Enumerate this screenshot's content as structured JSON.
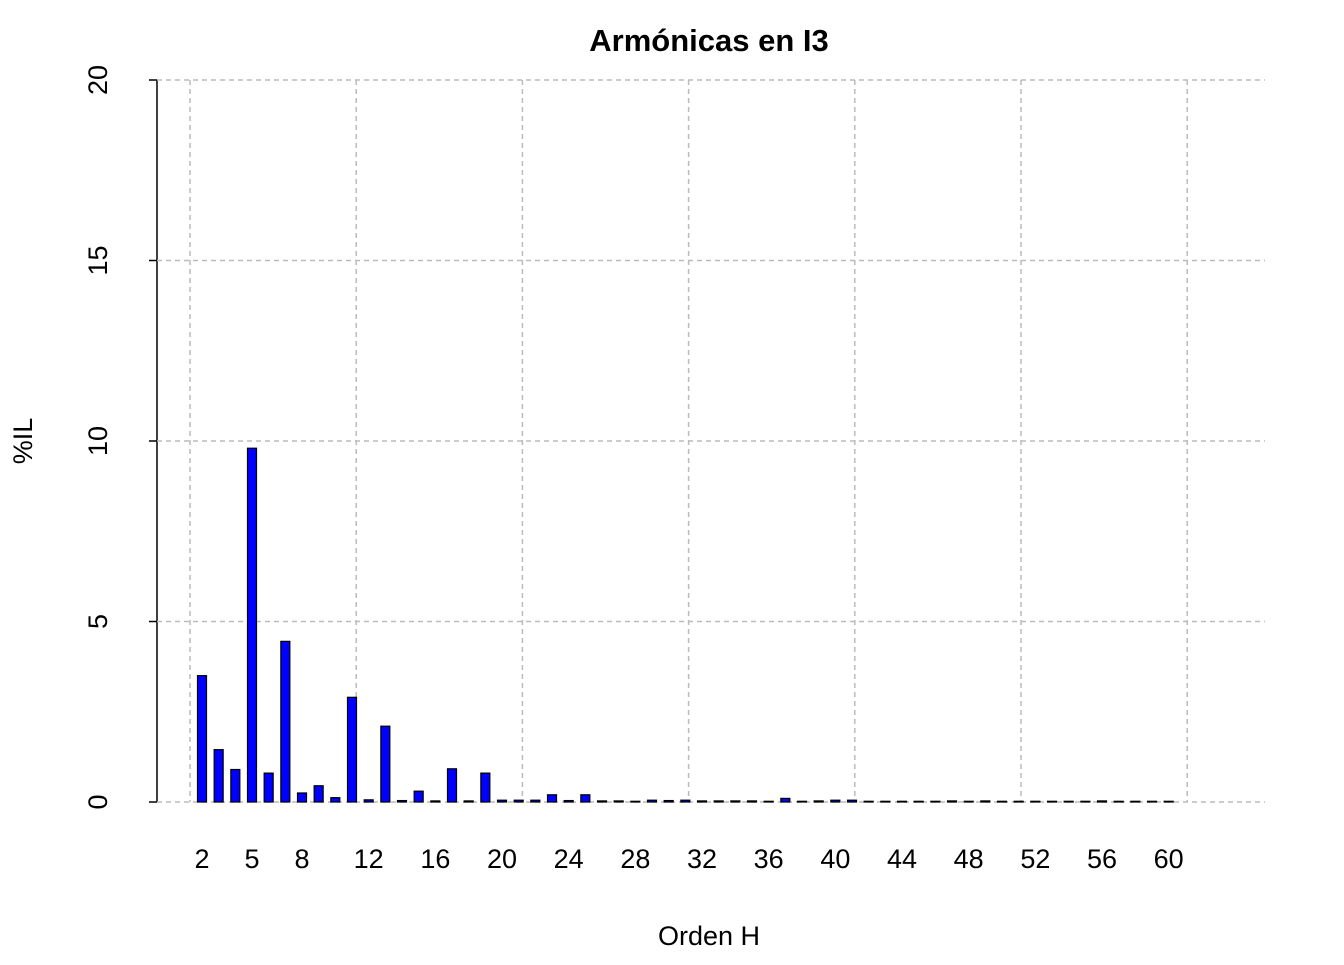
{
  "chart_data": {
    "type": "bar",
    "title": "Armónicas en I3",
    "x_label": "Orden H",
    "y_label": "%IL",
    "categories": [
      "2",
      null,
      null,
      "5",
      null,
      null,
      "8",
      null,
      null,
      null,
      "12",
      null,
      null,
      null,
      "16",
      null,
      null,
      null,
      "20",
      null,
      null,
      null,
      "24",
      null,
      null,
      null,
      "28",
      null,
      null,
      null,
      "32",
      null,
      null,
      null,
      "36",
      null,
      null,
      null,
      "40",
      null,
      null,
      null,
      "44",
      null,
      null,
      null,
      "48",
      null,
      null,
      null,
      "52",
      null,
      null,
      null,
      "56",
      null,
      null,
      null,
      "60"
    ],
    "values": [
      3.5,
      1.45,
      0.9,
      9.8,
      0.8,
      4.45,
      0.25,
      0.45,
      0.12,
      2.9,
      0.06,
      2.1,
      0.04,
      0.3,
      0.03,
      0.92,
      0.03,
      0.8,
      0.05,
      0.05,
      0.05,
      0.2,
      0.04,
      0.2,
      0.03,
      0.03,
      0.02,
      0.05,
      0.04,
      0.05,
      0.03,
      0.03,
      0.03,
      0.03,
      0.02,
      0.1,
      0.02,
      0.03,
      0.05,
      0.05,
      0.02,
      0.02,
      0.02,
      0.02,
      0.02,
      0.03,
      0.02,
      0.03,
      0.02,
      0.02,
      0.02,
      0.02,
      0.02,
      0.02,
      0.03,
      0.02,
      0.02,
      0.02,
      0.02
    ],
    "color": "#0000ff",
    "ylim": [
      0,
      20
    ],
    "yticks": [
      0,
      5,
      10,
      15,
      20
    ],
    "grid": true
  }
}
